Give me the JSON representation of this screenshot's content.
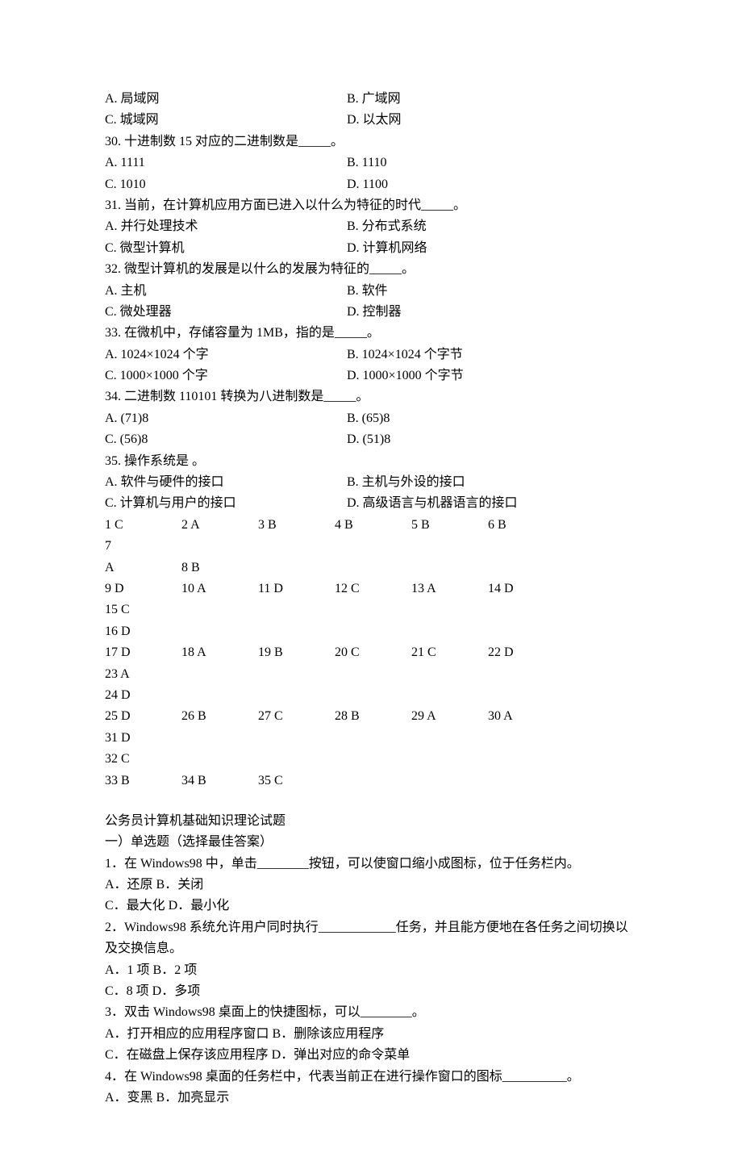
{
  "questions": [
    {
      "opts": [
        {
          "label": "A. 局域网"
        },
        {
          "label": "B. 广域网"
        },
        {
          "label": "C. 城域网"
        },
        {
          "label": "D. 以太网"
        }
      ]
    },
    {
      "stem": "30. 十进制数 15 对应的二进制数是_____。",
      "opts": [
        {
          "label": "A. 1111"
        },
        {
          "label": "B. 1110"
        },
        {
          "label": "C. 1010"
        },
        {
          "label": "D. 1100"
        }
      ]
    },
    {
      "stem": "31. 当前，在计算机应用方面已进入以什么为特征的时代_____。",
      "opts": [
        {
          "label": "A. 并行处理技术"
        },
        {
          "label": "B. 分布式系统"
        },
        {
          "label": "C. 微型计算机"
        },
        {
          "label": "D. 计算机网络"
        }
      ]
    },
    {
      "stem": "32. 微型计算机的发展是以什么的发展为特征的_____。",
      "opts": [
        {
          "label": "A. 主机"
        },
        {
          "label": "B. 软件"
        },
        {
          "label": "C. 微处理器"
        },
        {
          "label": "D. 控制器"
        }
      ]
    },
    {
      "stem": "33. 在微机中，存储容量为 1MB，指的是_____。",
      "opts": [
        {
          "label": "A. 1024×1024 个字"
        },
        {
          "label": "B. 1024×1024 个字节"
        },
        {
          "label": "C. 1000×1000 个字"
        },
        {
          "label": "D. 1000×1000 个字节"
        }
      ]
    },
    {
      "stem": "34. 二进制数 110101 转换为八进制数是_____。",
      "opts": [
        {
          "label": "A. (71)8"
        },
        {
          "label": "B. (65)8"
        },
        {
          "label": "C. (56)8"
        },
        {
          "label": "D. (51)8"
        }
      ]
    },
    {
      "stem": "35. 操作系统是 。",
      "opts": [
        {
          "label": "A. 软件与硬件的接口"
        },
        {
          "label": "B. 主机与外设的接口"
        },
        {
          "label": "C. 计算机与用户的接口"
        },
        {
          "label": "D. 高级语言与机器语言的接口"
        }
      ]
    }
  ],
  "answers": {
    "row1": [
      "1   C",
      "2   A",
      "3   B",
      "4   B",
      "5   B",
      "6   B",
      "7"
    ],
    "row1b": [
      "A",
      "8   B"
    ],
    "row2": [
      "9   D",
      "10 A",
      "11 D",
      "12 C",
      "13 A",
      "14 D",
      "15 C"
    ],
    "row2b": [
      "16 D"
    ],
    "row3": [
      "17 D",
      "18 A",
      "19 B",
      "20 C",
      "21 C",
      "22 D",
      "23 A"
    ],
    "row3b": [
      "24 D"
    ],
    "row4": [
      "25 D",
      "26 B",
      "27 C",
      "28 B",
      "29 A",
      "30 A",
      "31 D"
    ],
    "row4b": [
      "32 C"
    ],
    "row5": [
      "33 B",
      "34 B",
      "35 C"
    ]
  },
  "section2": {
    "title": "公务员计算机基础知识理论试题",
    "subtitle": "一）单选题（选择最佳答案）",
    "q1": {
      "stem_a": "1．在 Windows98 中，单击",
      "blank": "________",
      "stem_b": "按钮，可以使窗口缩小成图标，位于任务栏内。",
      "line1": "A．还原  B．关闭",
      "line2": "C．最大化  D．最小化"
    },
    "q2": {
      "stem_a": "2．Windows98 系统允许用户同时执行",
      "blank": "____________",
      "stem_b": "任务，并且能方便地在各任务之间切换以及交换信息。",
      "line1": "A．1 项  B．2 项",
      "line2": "C．8 项  D．多项"
    },
    "q3": {
      "stem_a": "3．双击 Windows98 桌面上的快捷图标，可以",
      "blank": "________",
      "stem_b": "。",
      "line1": "A．打开相应的应用程序窗口  B．删除该应用程序",
      "line2": "C．在磁盘上保存该应用程序  D．弹出对应的命令菜单"
    },
    "q4": {
      "stem_a": "4．在 Windows98 桌面的任务栏中，代表当前正在进行操作窗口的图标",
      "blank": "__________",
      "stem_b": "。",
      "line1": "A．变黑  B．加亮显示"
    }
  }
}
